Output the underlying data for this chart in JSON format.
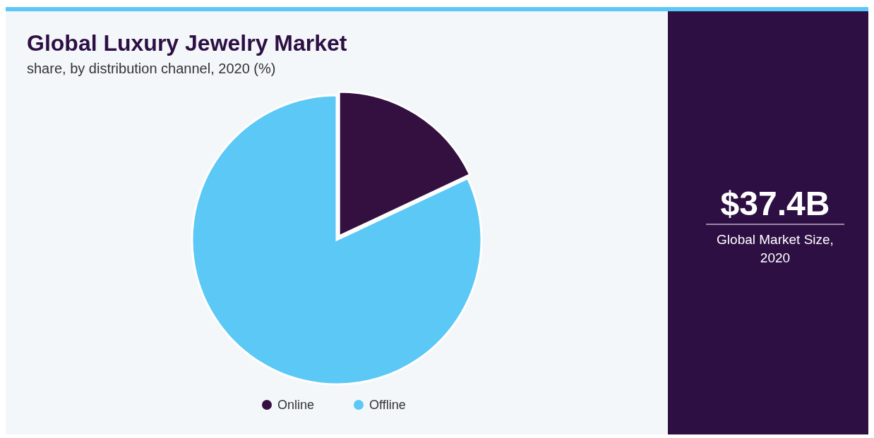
{
  "chart_data": {
    "type": "pie",
    "title": "Global Luxury Jewelry Market",
    "subtitle": "share, by distribution channel, 2020 (%)",
    "categories": [
      "Online",
      "Offline"
    ],
    "values": [
      18,
      82
    ],
    "colors": [
      "#341040",
      "#5bc8f5"
    ],
    "legend": "bottom",
    "annotations": [
      "$37.4B",
      "Global Market Size, 2020"
    ]
  }
}
